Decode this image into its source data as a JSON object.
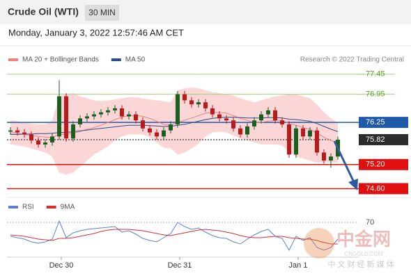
{
  "header": {
    "title": "Crude Oil (WTI)",
    "interval": "30 MIN",
    "datetime": "Monday, January 3, 2022 12:57:46 AM CET"
  },
  "watermark": {
    "text": "中金网",
    "sub": "CNGOLD.COM",
    "tag": "中 文 财 经 新 媒 体"
  },
  "chart_data": [
    {
      "type": "candlestick",
      "credit": "Research © 2022 Trading Central",
      "up_color": "#1b5e20",
      "down_color": "#b71c1c",
      "open": [
        76.02,
        76.05,
        76.0,
        75.95,
        75.8,
        75.7,
        75.75,
        75.9,
        76.9,
        75.85,
        76.2,
        76.35,
        76.4,
        76.45,
        76.5,
        76.55,
        76.6,
        76.4,
        76.45,
        76.3,
        76.1,
        76.0,
        75.9,
        76.05,
        76.2,
        76.95,
        76.8,
        76.7,
        76.75,
        76.6,
        76.45,
        76.35,
        76.3,
        76.1,
        75.95,
        76.15,
        76.3,
        76.45,
        76.55,
        76.3,
        76.2,
        75.45,
        76.1,
        75.9,
        76.05,
        75.5,
        75.3,
        75.4
      ],
      "high": [
        76.13,
        76.13,
        76.08,
        76.03,
        75.88,
        75.83,
        75.98,
        77.3,
        76.98,
        76.28,
        76.43,
        76.48,
        76.53,
        76.58,
        76.63,
        76.68,
        76.68,
        76.53,
        76.53,
        76.38,
        76.18,
        76.08,
        76.13,
        76.28,
        77.03,
        77.03,
        76.88,
        76.83,
        76.83,
        76.68,
        76.53,
        76.43,
        76.38,
        76.18,
        76.23,
        76.38,
        76.53,
        76.63,
        76.63,
        76.38,
        76.28,
        76.18,
        76.18,
        76.13,
        76.13,
        75.58,
        75.48,
        75.9
      ],
      "low": [
        75.94,
        75.92,
        75.87,
        75.72,
        75.62,
        75.62,
        75.67,
        75.82,
        75.77,
        75.77,
        76.12,
        76.27,
        76.32,
        76.37,
        76.42,
        76.47,
        76.32,
        76.32,
        76.22,
        76.02,
        75.92,
        75.82,
        75.82,
        75.97,
        76.12,
        76.72,
        76.62,
        76.62,
        76.52,
        76.37,
        76.27,
        76.22,
        76.02,
        75.87,
        75.87,
        76.07,
        76.22,
        76.37,
        76.22,
        76.12,
        75.37,
        75.37,
        75.82,
        75.82,
        75.42,
        75.22,
        75.12,
        75.32
      ],
      "close": [
        76.05,
        76.0,
        75.95,
        75.8,
        75.7,
        75.75,
        75.9,
        76.9,
        75.85,
        76.2,
        76.35,
        76.4,
        76.45,
        76.5,
        76.55,
        76.6,
        76.4,
        76.45,
        76.3,
        76.1,
        76.0,
        75.9,
        76.05,
        76.2,
        76.95,
        76.8,
        76.7,
        76.75,
        76.6,
        76.45,
        76.35,
        76.3,
        76.1,
        75.95,
        76.15,
        76.3,
        76.45,
        76.55,
        76.3,
        76.2,
        75.45,
        76.1,
        75.9,
        76.05,
        75.5,
        75.3,
        75.4,
        75.82
      ],
      "series": [
        {
          "name": "MA 20 + Bollinger Bands",
          "color": "#f08080",
          "band_color": "#f9cccc",
          "values": [
            76.0,
            75.98,
            75.95,
            75.92,
            75.9,
            75.88,
            75.88,
            75.95,
            75.95,
            75.98,
            76.02,
            76.08,
            76.12,
            76.18,
            76.25,
            76.32,
            76.38,
            76.42,
            76.42,
            76.4,
            76.35,
            76.28,
            76.2,
            76.18,
            76.25,
            76.3,
            76.36,
            76.42,
            76.48,
            76.5,
            76.5,
            76.48,
            76.42,
            76.35,
            76.3,
            76.25,
            76.25,
            76.28,
            76.3,
            76.3,
            76.22,
            76.18,
            76.12,
            76.08,
            75.98,
            75.88,
            75.8,
            75.75
          ],
          "upper": [
            76.3,
            76.28,
            76.25,
            76.22,
            76.2,
            76.2,
            76.3,
            76.9,
            76.95,
            76.98,
            76.9,
            76.85,
            76.8,
            76.78,
            76.8,
            76.82,
            76.85,
            76.88,
            76.88,
            76.85,
            76.82,
            76.8,
            76.78,
            76.75,
            77.05,
            77.1,
            77.12,
            77.1,
            77.05,
            77.0,
            76.98,
            76.95,
            76.92,
            76.85,
            76.8,
            76.75,
            76.8,
            76.85,
            76.9,
            76.92,
            76.95,
            76.95,
            76.9,
            76.85,
            76.7,
            76.5,
            76.35,
            76.25
          ],
          "lower": [
            75.7,
            75.68,
            75.65,
            75.6,
            75.55,
            75.5,
            75.4,
            75.0,
            74.95,
            75.0,
            75.15,
            75.3,
            75.45,
            75.55,
            75.65,
            75.8,
            75.9,
            75.95,
            75.95,
            75.95,
            75.88,
            75.75,
            75.62,
            75.6,
            75.45,
            75.5,
            75.6,
            75.72,
            75.9,
            76.0,
            76.02,
            76.0,
            75.92,
            75.85,
            75.8,
            75.75,
            75.7,
            75.7,
            75.7,
            75.68,
            75.5,
            75.4,
            75.35,
            75.3,
            75.25,
            75.25,
            75.25,
            75.25
          ]
        },
        {
          "name": "MA 50",
          "color": "#2c4c8c",
          "values": [
            75.95,
            75.95,
            75.96,
            75.96,
            75.97,
            75.97,
            75.98,
            76.0,
            76.0,
            76.02,
            76.04,
            76.06,
            76.08,
            76.1,
            76.12,
            76.14,
            76.16,
            76.18,
            76.18,
            76.18,
            76.17,
            76.16,
            76.15,
            76.15,
            76.18,
            76.2,
            76.24,
            76.28,
            76.32,
            76.35,
            76.37,
            76.38,
            76.38,
            76.37,
            76.36,
            76.36,
            76.36,
            76.37,
            76.37,
            76.36,
            76.33,
            76.32,
            76.3,
            76.28,
            76.22,
            76.15,
            76.08,
            76.02
          ]
        }
      ],
      "levels": [
        {
          "value": 77.45,
          "label": "77.45",
          "color": "#a5d07a",
          "text_color": "#5a9e1f"
        },
        {
          "value": 76.95,
          "label": "76.95",
          "color": "#a5d07a",
          "text_color": "#5a9e1f"
        },
        {
          "value": 76.25,
          "label": "76.25",
          "color": "#1e5aa8",
          "box": "#1e5aa8"
        },
        {
          "value": 75.82,
          "label": "75.82",
          "color": "#555555",
          "box": "#2b2b2b"
        },
        {
          "value": 75.2,
          "label": "75.20",
          "color": "#e01010",
          "box": "#e01010"
        },
        {
          "value": 74.6,
          "label": "74.60",
          "color": "#e01010",
          "box": "#e01010"
        }
      ],
      "xlim": [
        -0.5,
        50
      ],
      "ylim": [
        74.4,
        78.0
      ]
    },
    {
      "type": "rsi",
      "series": [
        {
          "name": "RSI",
          "color": "#5b7fd6",
          "values": [
            50,
            48,
            46,
            42,
            40,
            42,
            46,
            72,
            48,
            55,
            58,
            60,
            61,
            62,
            63,
            64,
            56,
            58,
            53,
            47,
            44,
            42,
            48,
            54,
            70,
            64,
            60,
            62,
            56,
            51,
            48,
            47,
            42,
            39,
            46,
            52,
            57,
            60,
            50,
            47,
            30,
            50,
            44,
            48,
            34,
            30,
            34,
            46
          ]
        },
        {
          "name": "9MA",
          "color": "#d32f2f",
          "values": [
            52,
            51,
            50,
            48,
            46,
            45,
            44,
            47,
            47,
            48,
            50,
            52,
            54,
            57,
            59,
            60,
            60,
            60,
            59,
            58,
            56,
            54,
            52,
            51,
            53,
            55,
            57,
            59,
            60,
            59,
            58,
            56,
            54,
            51,
            49,
            48,
            48,
            49,
            50,
            50,
            48,
            47,
            46,
            46,
            44,
            41,
            39,
            39
          ]
        }
      ],
      "xlim": [
        -0.5,
        50
      ],
      "ylim": [
        20,
        90
      ],
      "yticks": [
        70
      ],
      "xticks": [
        {
          "value": 7.3,
          "label": "Dec 30"
        },
        {
          "value": 24.3,
          "label": "Dec 31"
        },
        {
          "value": 41.3,
          "label": "Jan 1"
        }
      ]
    }
  ]
}
